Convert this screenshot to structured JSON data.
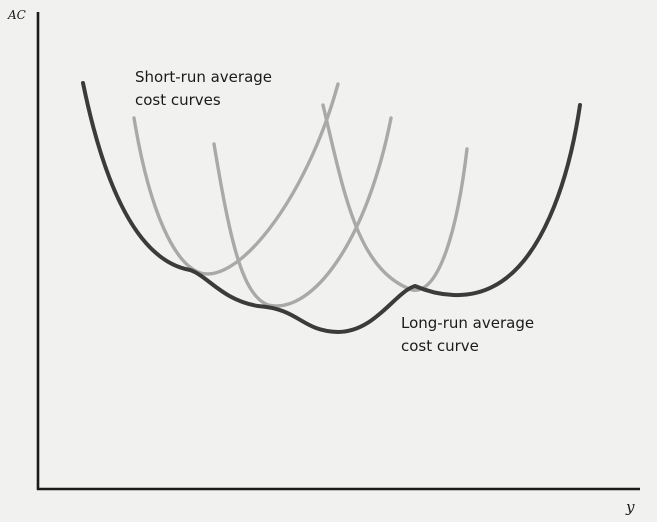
{
  "axes": {
    "y_label": "AC",
    "x_label": "y"
  },
  "curves": {
    "short_run_label_lines": [
      "Short-run average",
      "cost curves"
    ],
    "long_run_label_lines": [
      "Long-run average",
      "cost curve"
    ],
    "short_run_count": 4,
    "colors": {
      "axes": "#1b1b1b",
      "long_run": "#3b3b3b",
      "short_run": "#a9a9a7",
      "background": "#f1f1ef"
    }
  }
}
